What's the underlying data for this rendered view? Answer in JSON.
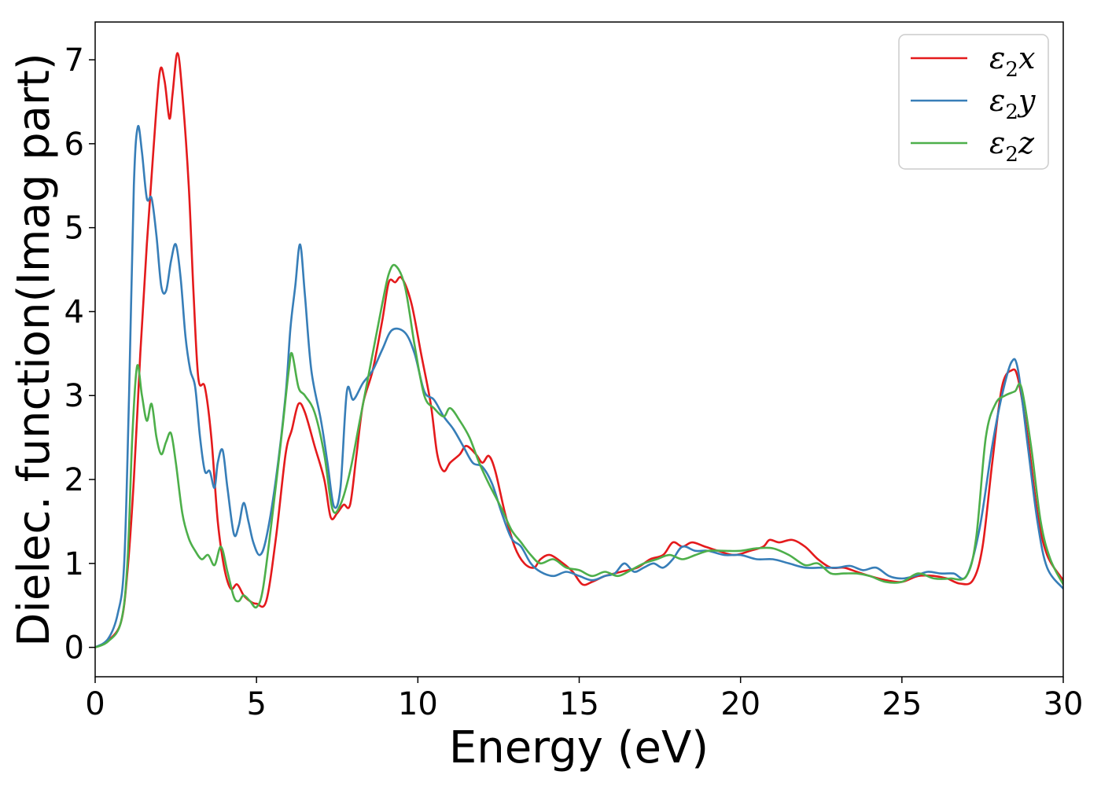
{
  "chart_data": {
    "type": "line",
    "xlabel": "Energy (eV)",
    "ylabel": "Dielec. function(Imag part)",
    "xlim": [
      0,
      30
    ],
    "ylim": [
      -0.35,
      7.45
    ],
    "x_ticks": [
      0,
      5,
      10,
      15,
      20,
      25,
      30
    ],
    "y_ticks": [
      0,
      1,
      2,
      3,
      4,
      5,
      6,
      7
    ],
    "grid": false,
    "legend_position": "top-right",
    "series": [
      {
        "name": "ε2x",
        "legend_base": "ε",
        "legend_sub": "2",
        "legend_suffix": "x",
        "color": "#e41a1c",
        "points": [
          [
            0,
            0
          ],
          [
            0.4,
            0.08
          ],
          [
            0.8,
            0.3
          ],
          [
            1.0,
            0.9
          ],
          [
            1.2,
            2.0
          ],
          [
            1.4,
            3.5
          ],
          [
            1.6,
            4.8
          ],
          [
            1.8,
            5.9
          ],
          [
            2.0,
            6.85
          ],
          [
            2.15,
            6.75
          ],
          [
            2.3,
            6.3
          ],
          [
            2.4,
            6.6
          ],
          [
            2.55,
            7.08
          ],
          [
            2.7,
            6.6
          ],
          [
            2.9,
            5.5
          ],
          [
            3.05,
            4.2
          ],
          [
            3.2,
            3.2
          ],
          [
            3.4,
            3.1
          ],
          [
            3.6,
            2.5
          ],
          [
            3.8,
            1.5
          ],
          [
            4.0,
            0.95
          ],
          [
            4.2,
            0.7
          ],
          [
            4.4,
            0.75
          ],
          [
            4.6,
            0.62
          ],
          [
            4.8,
            0.55
          ],
          [
            5.0,
            0.52
          ],
          [
            5.3,
            0.55
          ],
          [
            5.6,
            1.3
          ],
          [
            5.9,
            2.3
          ],
          [
            6.1,
            2.6
          ],
          [
            6.3,
            2.9
          ],
          [
            6.5,
            2.8
          ],
          [
            6.8,
            2.4
          ],
          [
            7.1,
            2.0
          ],
          [
            7.3,
            1.55
          ],
          [
            7.5,
            1.6
          ],
          [
            7.7,
            1.7
          ],
          [
            7.9,
            1.7
          ],
          [
            8.1,
            2.3
          ],
          [
            8.3,
            2.9
          ],
          [
            8.6,
            3.3
          ],
          [
            8.9,
            3.9
          ],
          [
            9.1,
            4.35
          ],
          [
            9.3,
            4.35
          ],
          [
            9.5,
            4.4
          ],
          [
            9.8,
            4.1
          ],
          [
            10.1,
            3.5
          ],
          [
            10.4,
            2.9
          ],
          [
            10.6,
            2.3
          ],
          [
            10.8,
            2.1
          ],
          [
            11.0,
            2.2
          ],
          [
            11.3,
            2.3
          ],
          [
            11.5,
            2.4
          ],
          [
            11.8,
            2.3
          ],
          [
            12.0,
            2.2
          ],
          [
            12.2,
            2.28
          ],
          [
            12.4,
            2.1
          ],
          [
            12.7,
            1.6
          ],
          [
            13.0,
            1.2
          ],
          [
            13.3,
            1.0
          ],
          [
            13.6,
            0.95
          ],
          [
            13.8,
            1.05
          ],
          [
            14.1,
            1.1
          ],
          [
            14.5,
            1.0
          ],
          [
            14.8,
            0.9
          ],
          [
            15.1,
            0.75
          ],
          [
            15.4,
            0.78
          ],
          [
            15.8,
            0.85
          ],
          [
            16.3,
            0.9
          ],
          [
            16.8,
            0.95
          ],
          [
            17.2,
            1.05
          ],
          [
            17.6,
            1.1
          ],
          [
            17.9,
            1.25
          ],
          [
            18.2,
            1.2
          ],
          [
            18.5,
            1.25
          ],
          [
            18.9,
            1.2
          ],
          [
            19.3,
            1.15
          ],
          [
            19.8,
            1.1
          ],
          [
            20.3,
            1.15
          ],
          [
            20.7,
            1.2
          ],
          [
            20.9,
            1.28
          ],
          [
            21.2,
            1.25
          ],
          [
            21.6,
            1.28
          ],
          [
            22.0,
            1.2
          ],
          [
            22.4,
            1.05
          ],
          [
            22.8,
            0.95
          ],
          [
            23.2,
            0.95
          ],
          [
            23.6,
            0.9
          ],
          [
            24.0,
            0.85
          ],
          [
            24.5,
            0.8
          ],
          [
            25.0,
            0.78
          ],
          [
            25.5,
            0.85
          ],
          [
            26.0,
            0.85
          ],
          [
            26.4,
            0.82
          ],
          [
            26.8,
            0.76
          ],
          [
            27.2,
            0.8
          ],
          [
            27.5,
            1.2
          ],
          [
            27.8,
            2.2
          ],
          [
            28.1,
            3.1
          ],
          [
            28.4,
            3.3
          ],
          [
            28.6,
            3.2
          ],
          [
            28.9,
            2.5
          ],
          [
            29.2,
            1.6
          ],
          [
            29.5,
            1.1
          ],
          [
            30.0,
            0.8
          ]
        ]
      },
      {
        "name": "ε2y",
        "legend_base": "ε",
        "legend_sub": "2",
        "legend_suffix": "y",
        "color": "#377eb8",
        "points": [
          [
            0,
            0
          ],
          [
            0.4,
            0.1
          ],
          [
            0.7,
            0.4
          ],
          [
            0.9,
            1.0
          ],
          [
            1.05,
            3.0
          ],
          [
            1.2,
            5.5
          ],
          [
            1.32,
            6.2
          ],
          [
            1.45,
            5.9
          ],
          [
            1.6,
            5.35
          ],
          [
            1.75,
            5.35
          ],
          [
            1.9,
            4.9
          ],
          [
            2.05,
            4.3
          ],
          [
            2.2,
            4.25
          ],
          [
            2.35,
            4.6
          ],
          [
            2.5,
            4.8
          ],
          [
            2.65,
            4.4
          ],
          [
            2.8,
            3.7
          ],
          [
            2.95,
            3.3
          ],
          [
            3.1,
            3.1
          ],
          [
            3.25,
            2.5
          ],
          [
            3.4,
            2.1
          ],
          [
            3.55,
            2.1
          ],
          [
            3.7,
            1.9
          ],
          [
            3.8,
            2.2
          ],
          [
            3.95,
            2.35
          ],
          [
            4.1,
            1.9
          ],
          [
            4.3,
            1.35
          ],
          [
            4.45,
            1.45
          ],
          [
            4.6,
            1.72
          ],
          [
            4.75,
            1.5
          ],
          [
            4.9,
            1.25
          ],
          [
            5.1,
            1.1
          ],
          [
            5.3,
            1.3
          ],
          [
            5.6,
            2.0
          ],
          [
            5.9,
            3.0
          ],
          [
            6.05,
            3.8
          ],
          [
            6.2,
            4.3
          ],
          [
            6.35,
            4.8
          ],
          [
            6.5,
            4.2
          ],
          [
            6.7,
            3.3
          ],
          [
            7.0,
            2.7
          ],
          [
            7.2,
            2.2
          ],
          [
            7.4,
            1.68
          ],
          [
            7.6,
            1.9
          ],
          [
            7.8,
            3.05
          ],
          [
            8.0,
            2.95
          ],
          [
            8.3,
            3.15
          ],
          [
            8.6,
            3.3
          ],
          [
            8.9,
            3.55
          ],
          [
            9.2,
            3.78
          ],
          [
            9.6,
            3.75
          ],
          [
            9.9,
            3.5
          ],
          [
            10.2,
            3.05
          ],
          [
            10.5,
            2.95
          ],
          [
            10.8,
            2.75
          ],
          [
            11.1,
            2.6
          ],
          [
            11.4,
            2.4
          ],
          [
            11.7,
            2.2
          ],
          [
            12.0,
            2.15
          ],
          [
            12.3,
            1.95
          ],
          [
            12.6,
            1.6
          ],
          [
            12.9,
            1.3
          ],
          [
            13.2,
            1.2
          ],
          [
            13.5,
            1.0
          ],
          [
            13.8,
            0.9
          ],
          [
            14.2,
            0.85
          ],
          [
            14.6,
            0.9
          ],
          [
            15.0,
            0.85
          ],
          [
            15.4,
            0.8
          ],
          [
            15.8,
            0.85
          ],
          [
            16.1,
            0.88
          ],
          [
            16.4,
            1.0
          ],
          [
            16.7,
            0.9
          ],
          [
            17.0,
            0.95
          ],
          [
            17.3,
            1.0
          ],
          [
            17.6,
            0.95
          ],
          [
            17.9,
            1.05
          ],
          [
            18.2,
            1.2
          ],
          [
            18.6,
            1.15
          ],
          [
            19.0,
            1.15
          ],
          [
            19.5,
            1.1
          ],
          [
            20.0,
            1.1
          ],
          [
            20.5,
            1.05
          ],
          [
            21.0,
            1.05
          ],
          [
            21.5,
            1.0
          ],
          [
            22.0,
            0.95
          ],
          [
            22.5,
            0.95
          ],
          [
            23.0,
            0.95
          ],
          [
            23.4,
            0.97
          ],
          [
            23.8,
            0.92
          ],
          [
            24.2,
            0.95
          ],
          [
            24.6,
            0.85
          ],
          [
            25.0,
            0.82
          ],
          [
            25.4,
            0.85
          ],
          [
            25.8,
            0.9
          ],
          [
            26.2,
            0.88
          ],
          [
            26.6,
            0.88
          ],
          [
            27.0,
            0.85
          ],
          [
            27.4,
            1.4
          ],
          [
            27.8,
            2.4
          ],
          [
            28.1,
            3.0
          ],
          [
            28.4,
            3.4
          ],
          [
            28.6,
            3.3
          ],
          [
            28.9,
            2.4
          ],
          [
            29.2,
            1.5
          ],
          [
            29.5,
            0.95
          ],
          [
            30.0,
            0.7
          ]
        ]
      },
      {
        "name": "ε2z",
        "legend_base": "ε",
        "legend_sub": "2",
        "legend_suffix": "z",
        "color": "#4daf4a",
        "points": [
          [
            0,
            0
          ],
          [
            0.4,
            0.07
          ],
          [
            0.8,
            0.3
          ],
          [
            1.0,
            1.0
          ],
          [
            1.15,
            2.5
          ],
          [
            1.3,
            3.35
          ],
          [
            1.45,
            3.0
          ],
          [
            1.6,
            2.7
          ],
          [
            1.75,
            2.9
          ],
          [
            1.9,
            2.5
          ],
          [
            2.05,
            2.3
          ],
          [
            2.2,
            2.45
          ],
          [
            2.35,
            2.55
          ],
          [
            2.5,
            2.2
          ],
          [
            2.7,
            1.6
          ],
          [
            2.9,
            1.3
          ],
          [
            3.1,
            1.15
          ],
          [
            3.3,
            1.05
          ],
          [
            3.5,
            1.1
          ],
          [
            3.7,
            0.98
          ],
          [
            3.9,
            1.2
          ],
          [
            4.1,
            0.9
          ],
          [
            4.3,
            0.6
          ],
          [
            4.45,
            0.55
          ],
          [
            4.6,
            0.62
          ],
          [
            4.8,
            0.55
          ],
          [
            5.0,
            0.48
          ],
          [
            5.2,
            0.7
          ],
          [
            5.5,
            1.6
          ],
          [
            5.8,
            2.6
          ],
          [
            6.0,
            3.3
          ],
          [
            6.1,
            3.5
          ],
          [
            6.3,
            3.1
          ],
          [
            6.5,
            3.0
          ],
          [
            6.8,
            2.8
          ],
          [
            7.1,
            2.3
          ],
          [
            7.35,
            1.65
          ],
          [
            7.6,
            1.7
          ],
          [
            7.9,
            2.1
          ],
          [
            8.2,
            2.7
          ],
          [
            8.6,
            3.5
          ],
          [
            8.9,
            4.1
          ],
          [
            9.1,
            4.45
          ],
          [
            9.3,
            4.55
          ],
          [
            9.6,
            4.3
          ],
          [
            9.9,
            3.6
          ],
          [
            10.2,
            3.0
          ],
          [
            10.5,
            2.85
          ],
          [
            10.8,
            2.75
          ],
          [
            11.0,
            2.85
          ],
          [
            11.3,
            2.7
          ],
          [
            11.6,
            2.5
          ],
          [
            11.9,
            2.2
          ],
          [
            12.2,
            1.95
          ],
          [
            12.6,
            1.65
          ],
          [
            12.9,
            1.4
          ],
          [
            13.2,
            1.25
          ],
          [
            13.5,
            1.1
          ],
          [
            13.8,
            1.0
          ],
          [
            14.2,
            1.05
          ],
          [
            14.6,
            0.95
          ],
          [
            15.0,
            0.92
          ],
          [
            15.4,
            0.85
          ],
          [
            15.8,
            0.9
          ],
          [
            16.2,
            0.85
          ],
          [
            16.6,
            0.92
          ],
          [
            17.0,
            1.0
          ],
          [
            17.4,
            1.05
          ],
          [
            17.8,
            1.1
          ],
          [
            18.2,
            1.05
          ],
          [
            18.6,
            1.1
          ],
          [
            19.0,
            1.15
          ],
          [
            19.5,
            1.15
          ],
          [
            20.0,
            1.15
          ],
          [
            20.5,
            1.18
          ],
          [
            21.0,
            1.18
          ],
          [
            21.5,
            1.1
          ],
          [
            22.0,
            0.98
          ],
          [
            22.4,
            1.0
          ],
          [
            22.8,
            0.88
          ],
          [
            23.2,
            0.88
          ],
          [
            23.6,
            0.88
          ],
          [
            24.0,
            0.85
          ],
          [
            24.5,
            0.78
          ],
          [
            25.0,
            0.78
          ],
          [
            25.5,
            0.88
          ],
          [
            26.0,
            0.82
          ],
          [
            26.5,
            0.82
          ],
          [
            27.0,
            0.85
          ],
          [
            27.3,
            1.3
          ],
          [
            27.6,
            2.5
          ],
          [
            27.9,
            2.9
          ],
          [
            28.2,
            3.0
          ],
          [
            28.5,
            3.05
          ],
          [
            28.7,
            3.1
          ],
          [
            29.0,
            2.4
          ],
          [
            29.3,
            1.5
          ],
          [
            29.6,
            1.05
          ],
          [
            30.0,
            0.75
          ]
        ]
      }
    ]
  }
}
